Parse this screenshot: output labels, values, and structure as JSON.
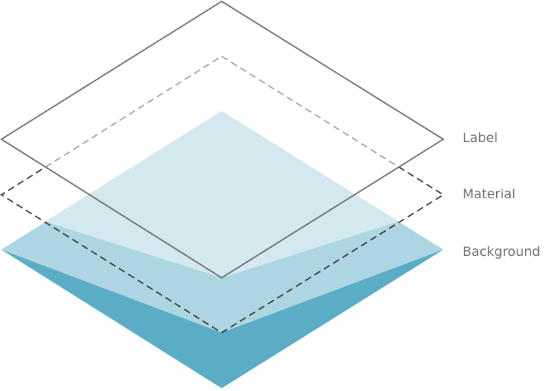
{
  "layers": {
    "label": {
      "text": "Label",
      "stroke": "#6e6e6e"
    },
    "material": {
      "text": "Material",
      "stroke": "#3c3c3c"
    },
    "background": {
      "text": "Background",
      "fill": "#5aadc4"
    }
  },
  "colors": {
    "background_fill": "#5aadc4",
    "material_overlap_fill": "#add6e2",
    "material_fill": "#d3e8ef",
    "label_stroke": "#6e6e6e",
    "label_stroke_hidden": "#a5a5a5",
    "material_stroke": "#3c3c3c",
    "text": "#6e6e6e"
  }
}
